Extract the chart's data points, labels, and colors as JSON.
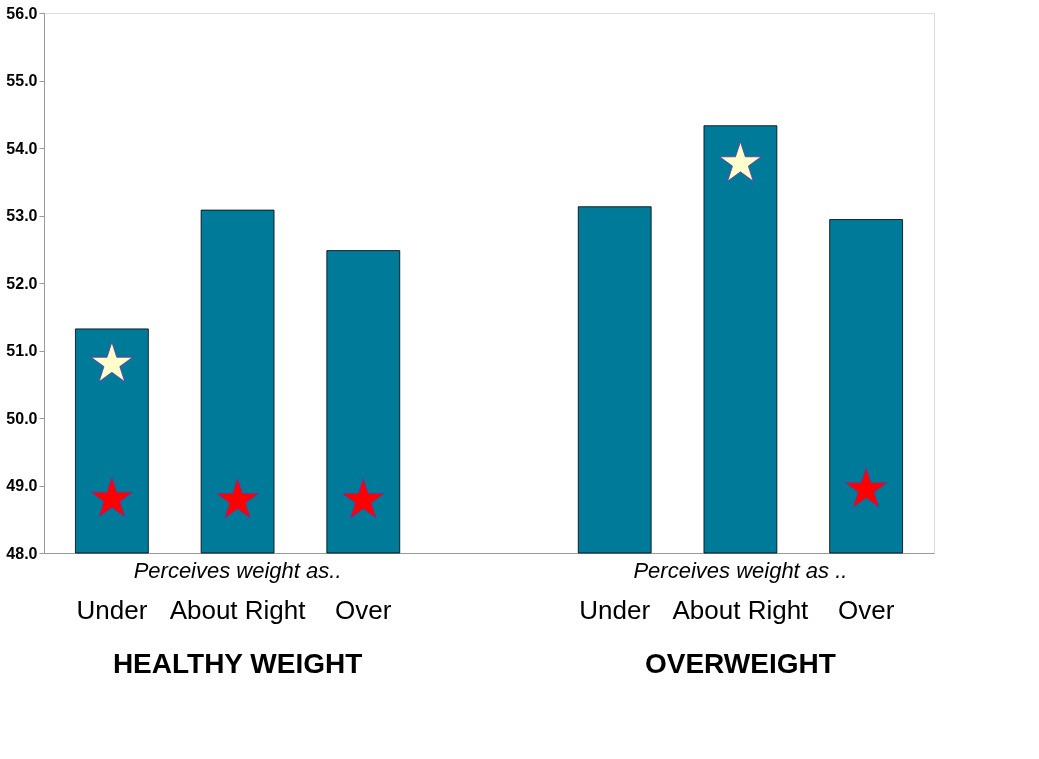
{
  "chart_data": {
    "type": "bar",
    "categories": [
      "Under",
      "About Right",
      "Over",
      null,
      "Under",
      "About Right",
      "Over"
    ],
    "series": [
      {
        "color": "#007a99",
        "values": [
          51.32,
          53.08,
          52.48,
          null,
          53.13,
          54.33,
          52.94
        ]
      },
      {
        "type": "scatter",
        "color": "#ff0000",
        "marker": "star",
        "values": [
          48.8,
          48.78,
          48.78,
          null,
          null,
          null,
          48.94
        ]
      },
      {
        "type": "scatter",
        "color": "#ffffcc",
        "marker": "star",
        "values": [
          50.8,
          null,
          null,
          null,
          null,
          53.77,
          null
        ]
      }
    ],
    "ylim": [
      48,
      56
    ],
    "yticks": [
      {
        "value": 48,
        "label": "48.0"
      },
      {
        "value": 49,
        "label": "49.0"
      },
      {
        "value": 50,
        "label": "50.0"
      },
      {
        "value": 51,
        "label": "51.0"
      },
      {
        "value": 52,
        "label": "52.0"
      },
      {
        "value": 53,
        "label": "53.0"
      },
      {
        "value": 54,
        "label": "54.0"
      },
      {
        "value": 55,
        "label": "55.0"
      },
      {
        "value": 56,
        "label": "56.0"
      }
    ],
    "annotations": [
      "Perceives weight as..",
      "Perceives weight as ..",
      "HEALTHY WEIGHT",
      "OVERWEIGHT"
    ],
    "grid": false
  }
}
